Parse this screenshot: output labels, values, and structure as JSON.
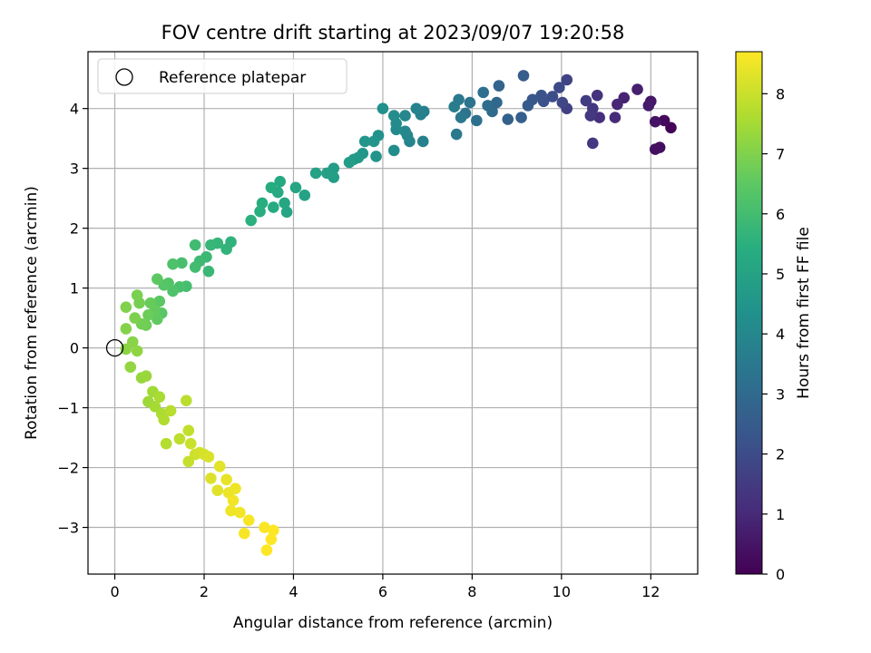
{
  "chart_data": {
    "type": "scatter",
    "title": "FOV centre drift starting at 2023/09/07 19:20:58",
    "xlabel": "Angular distance from reference (arcmin)",
    "ylabel": "Rotation from reference (arcmin)",
    "xlim": [
      -0.6,
      13.05
    ],
    "ylim": [
      -3.78,
      4.95
    ],
    "xticks": [
      0,
      2,
      4,
      6,
      8,
      10,
      12
    ],
    "yticks": [
      -3,
      -2,
      -1,
      0,
      1,
      2,
      3,
      4
    ],
    "grid": true,
    "legend": {
      "placement": "top-left",
      "entries": [
        "Reference platepar"
      ]
    },
    "reference_point": {
      "x": 0,
      "y": 0,
      "marker": "open-circle",
      "color": "#000000"
    },
    "colorbar": {
      "label": "Hours from first FF file",
      "colormap": "viridis",
      "range": [
        0,
        8.7
      ],
      "ticks": [
        0,
        1,
        2,
        3,
        4,
        5,
        6,
        7,
        8
      ]
    },
    "points": [
      [
        12.45,
        3.68,
        0.1
      ],
      [
        12.3,
        3.8,
        0.2
      ],
      [
        12.2,
        3.35,
        0.3
      ],
      [
        12.1,
        3.32,
        0.35
      ],
      [
        12.1,
        3.78,
        0.45
      ],
      [
        12.0,
        4.12,
        0.55
      ],
      [
        11.95,
        4.05,
        0.65
      ],
      [
        11.7,
        4.32,
        0.75
      ],
      [
        11.4,
        4.18,
        0.85
      ],
      [
        11.25,
        4.07,
        0.95
      ],
      [
        11.2,
        3.85,
        1.05
      ],
      [
        10.85,
        3.85,
        1.15
      ],
      [
        10.8,
        4.22,
        1.25
      ],
      [
        10.7,
        4.0,
        1.35
      ],
      [
        10.7,
        3.42,
        1.4
      ],
      [
        10.65,
        3.88,
        1.45
      ],
      [
        10.55,
        4.13,
        1.55
      ],
      [
        10.12,
        4.0,
        1.65
      ],
      [
        10.12,
        4.48,
        1.75
      ],
      [
        10.02,
        4.1,
        1.85
      ],
      [
        9.95,
        4.35,
        1.95
      ],
      [
        9.8,
        4.2,
        2.05
      ],
      [
        9.6,
        4.12,
        2.15
      ],
      [
        9.55,
        4.22,
        2.25
      ],
      [
        9.35,
        4.15,
        2.35
      ],
      [
        9.25,
        4.05,
        2.45
      ],
      [
        9.15,
        4.55,
        2.55
      ],
      [
        9.1,
        3.85,
        2.6
      ],
      [
        8.8,
        3.82,
        2.7
      ],
      [
        8.6,
        4.38,
        2.8
      ],
      [
        8.55,
        4.1,
        2.9
      ],
      [
        8.45,
        3.95,
        3.0
      ],
      [
        8.35,
        4.05,
        3.05
      ],
      [
        8.25,
        4.27,
        3.15
      ],
      [
        8.1,
        3.8,
        3.2
      ],
      [
        7.95,
        4.1,
        3.3
      ],
      [
        7.85,
        3.92,
        3.35
      ],
      [
        7.75,
        3.85,
        3.45
      ],
      [
        7.7,
        4.15,
        3.5
      ],
      [
        7.65,
        3.57,
        3.55
      ],
      [
        7.6,
        4.03,
        3.6
      ],
      [
        6.92,
        3.95,
        3.7
      ],
      [
        6.9,
        3.45,
        3.75
      ],
      [
        6.85,
        3.9,
        3.8
      ],
      [
        6.75,
        4.0,
        3.85
      ],
      [
        6.6,
        3.45,
        3.9
      ],
      [
        6.55,
        3.55,
        3.95
      ],
      [
        6.5,
        3.88,
        4.0
      ],
      [
        6.5,
        3.62,
        4.05
      ],
      [
        6.3,
        3.65,
        4.1
      ],
      [
        6.3,
        3.75,
        4.15
      ],
      [
        6.25,
        3.88,
        4.2
      ],
      [
        6.25,
        3.3,
        4.25
      ],
      [
        6.0,
        4.0,
        4.3
      ],
      [
        5.9,
        3.55,
        4.4
      ],
      [
        5.85,
        3.2,
        4.45
      ],
      [
        5.8,
        3.45,
        4.5
      ],
      [
        5.6,
        3.45,
        4.55
      ],
      [
        5.55,
        3.25,
        4.6
      ],
      [
        5.45,
        3.18,
        4.65
      ],
      [
        5.35,
        3.15,
        4.7
      ],
      [
        5.25,
        3.1,
        4.75
      ],
      [
        4.9,
        3.0,
        4.8
      ],
      [
        4.9,
        2.85,
        4.85
      ],
      [
        4.75,
        2.92,
        4.9
      ],
      [
        4.5,
        2.92,
        4.95
      ],
      [
        4.25,
        2.55,
        5.0
      ],
      [
        4.05,
        2.68,
        5.05
      ],
      [
        3.85,
        2.27,
        5.1
      ],
      [
        3.8,
        2.42,
        5.15
      ],
      [
        3.7,
        2.78,
        5.2
      ],
      [
        3.65,
        2.6,
        5.25
      ],
      [
        3.55,
        2.35,
        5.3
      ],
      [
        3.5,
        2.68,
        5.35
      ],
      [
        3.3,
        2.42,
        5.4
      ],
      [
        3.25,
        2.28,
        5.45
      ],
      [
        3.05,
        2.13,
        5.5
      ],
      [
        2.6,
        1.77,
        5.6
      ],
      [
        2.5,
        1.65,
        5.65
      ],
      [
        2.3,
        1.75,
        5.7
      ],
      [
        2.15,
        1.72,
        5.75
      ],
      [
        2.1,
        1.28,
        5.8
      ],
      [
        2.05,
        1.52,
        5.85
      ],
      [
        1.9,
        1.45,
        5.9
      ],
      [
        1.8,
        1.72,
        5.95
      ],
      [
        1.8,
        1.35,
        6.0
      ],
      [
        1.6,
        1.03,
        6.05
      ],
      [
        1.5,
        1.42,
        6.1
      ],
      [
        1.45,
        1.02,
        6.15
      ],
      [
        1.3,
        1.4,
        6.2
      ],
      [
        1.3,
        0.95,
        6.25
      ],
      [
        1.2,
        1.08,
        6.3
      ],
      [
        1.1,
        1.05,
        6.35
      ],
      [
        1.05,
        0.58,
        6.4
      ],
      [
        1.0,
        0.78,
        6.45
      ],
      [
        0.95,
        1.15,
        6.5
      ],
      [
        0.95,
        0.48,
        6.55
      ],
      [
        0.9,
        0.63,
        6.6
      ],
      [
        0.8,
        0.75,
        6.65
      ],
      [
        0.75,
        0.55,
        6.7
      ],
      [
        0.7,
        0.38,
        6.75
      ],
      [
        0.6,
        0.4,
        6.8
      ],
      [
        0.55,
        0.75,
        6.85
      ],
      [
        0.5,
        0.88,
        6.9
      ],
      [
        0.45,
        0.5,
        6.95
      ],
      [
        0.25,
        0.68,
        7.0
      ],
      [
        0.25,
        0.32,
        7.05
      ],
      [
        0.4,
        0.1,
        7.1
      ],
      [
        0.25,
        -0.02,
        7.15
      ],
      [
        0.5,
        -0.05,
        7.2
      ],
      [
        0.35,
        -0.32,
        7.25
      ],
      [
        0.6,
        -0.5,
        7.3
      ],
      [
        0.7,
        -0.47,
        7.35
      ],
      [
        0.75,
        -0.9,
        7.4
      ],
      [
        0.85,
        -0.73,
        7.45
      ],
      [
        0.9,
        -0.98,
        7.5
      ],
      [
        1.0,
        -0.82,
        7.55
      ],
      [
        1.05,
        -1.1,
        7.6
      ],
      [
        1.1,
        -1.2,
        7.65
      ],
      [
        1.15,
        -1.6,
        7.7
      ],
      [
        1.25,
        -1.05,
        7.75
      ],
      [
        1.6,
        -0.88,
        7.8
      ],
      [
        1.45,
        -1.52,
        7.85
      ],
      [
        1.65,
        -1.38,
        7.9
      ],
      [
        1.65,
        -1.9,
        7.95
      ],
      [
        1.7,
        -1.6,
        8.0
      ],
      [
        1.8,
        -1.78,
        8.05
      ],
      [
        1.9,
        -1.75,
        8.1
      ],
      [
        2.0,
        -1.78,
        8.15
      ],
      [
        2.1,
        -1.82,
        8.2
      ],
      [
        2.15,
        -2.18,
        8.25
      ],
      [
        2.3,
        -2.38,
        8.3
      ],
      [
        2.35,
        -1.98,
        8.35
      ],
      [
        2.5,
        -2.2,
        8.4
      ],
      [
        2.55,
        -2.42,
        8.45
      ],
      [
        2.6,
        -2.72,
        8.5
      ],
      [
        2.65,
        -2.55,
        8.55
      ],
      [
        2.7,
        -2.35,
        8.5
      ],
      [
        2.8,
        -2.75,
        8.55
      ],
      [
        2.9,
        -3.1,
        8.6
      ],
      [
        3.0,
        -2.88,
        8.6
      ],
      [
        3.35,
        -3.0,
        8.65
      ],
      [
        3.4,
        -3.38,
        8.7
      ],
      [
        3.5,
        -3.2,
        8.7
      ],
      [
        3.55,
        -3.05,
        8.7
      ]
    ]
  }
}
